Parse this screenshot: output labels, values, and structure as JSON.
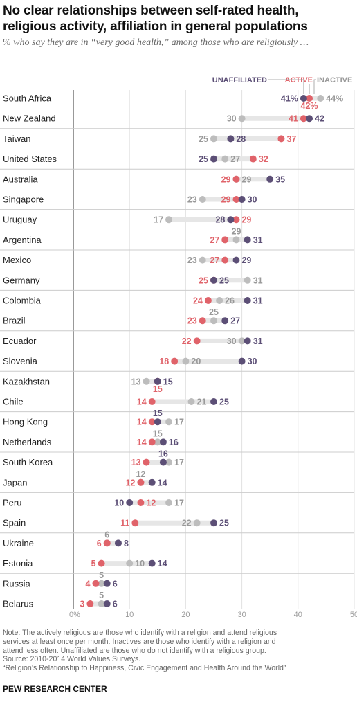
{
  "title": "No clear relationships between self-rated health, religious activity, affiliation in general populations",
  "subtitle": "% who say they are in “very good health,” among those who are religiously …",
  "notes": [
    "Note: The actively religious are those who identify with a religion and attend religious",
    "services at least once per month. Inactives are those who identify with a religion and",
    "attend less often. Unaffiliated are those who do not identify with a religious group.",
    "Source: 2010-2014 World Values Surveys.",
    "“Religion’s Relationship to Happiness, Civic Engagement and Health Around the World”"
  ],
  "brand": "PEW RESEARCH CENTER",
  "colors": {
    "unaffiliated": "#5c4f76",
    "active": "#e0636a",
    "inactive": "#bdbdbd",
    "bar": "#e6e6e6",
    "sep": "#cccccc"
  },
  "chart_data": {
    "type": "dot",
    "series": [
      {
        "key": "unaffiliated",
        "name": "UNAFFILIATED"
      },
      {
        "key": "active",
        "name": "ACTIVE"
      },
      {
        "key": "inactive",
        "name": "INACTIVE"
      }
    ],
    "xlim": [
      0,
      50
    ],
    "xticks": [
      0,
      10,
      20,
      30,
      40,
      50
    ],
    "xtick_labels": [
      "0%",
      "10",
      "20",
      "30",
      "40",
      "50"
    ],
    "rows": [
      {
        "country": "South Africa",
        "unaffiliated": 41,
        "active": 42,
        "inactive": 44,
        "labels": {
          "unaffiliated": "41%",
          "active": "42%",
          "inactive": "44%"
        }
      },
      {
        "country": "New Zealand",
        "unaffiliated": 42,
        "active": 41,
        "inactive": 30
      },
      {
        "country": "Taiwan",
        "unaffiliated": 28,
        "active": 37,
        "inactive": 25
      },
      {
        "country": "United States",
        "unaffiliated": 25,
        "active": 32,
        "inactive": 27
      },
      {
        "country": "Australia",
        "unaffiliated": 35,
        "active": 29,
        "inactive": 29
      },
      {
        "country": "Singapore",
        "unaffiliated": 30,
        "active": 29,
        "inactive": 23
      },
      {
        "country": "Uruguay",
        "unaffiliated": 28,
        "active": 29,
        "inactive": 17
      },
      {
        "country": "Argentina",
        "unaffiliated": 31,
        "active": 27,
        "inactive": 29
      },
      {
        "country": "Mexico",
        "unaffiliated": 29,
        "active": 27,
        "inactive": 23
      },
      {
        "country": "Germany",
        "unaffiliated": 25,
        "active": 25,
        "inactive": 31
      },
      {
        "country": "Colombia",
        "unaffiliated": 31,
        "active": 24,
        "inactive": 26
      },
      {
        "country": "Brazil",
        "unaffiliated": 27,
        "active": 23,
        "inactive": 25
      },
      {
        "country": "Ecuador",
        "unaffiliated": 31,
        "active": 22,
        "inactive": 30
      },
      {
        "country": "Slovenia",
        "unaffiliated": 30,
        "active": 18,
        "inactive": 20
      },
      {
        "country": "Kazakhstan",
        "unaffiliated": 15,
        "active": 15,
        "inactive": 13
      },
      {
        "country": "Chile",
        "unaffiliated": 25,
        "active": 14,
        "inactive": 21
      },
      {
        "country": "Hong Kong",
        "unaffiliated": 15,
        "active": 14,
        "inactive": 17
      },
      {
        "country": "Netherlands",
        "unaffiliated": 16,
        "active": 14,
        "inactive": 15
      },
      {
        "country": "South Korea",
        "unaffiliated": 16,
        "active": 13,
        "inactive": 17
      },
      {
        "country": "Japan",
        "unaffiliated": 14,
        "active": 12,
        "inactive": 12
      },
      {
        "country": "Peru",
        "unaffiliated": 10,
        "active": 12,
        "inactive": 17
      },
      {
        "country": "Spain",
        "unaffiliated": 25,
        "active": 11,
        "inactive": 22
      },
      {
        "country": "Ukraine",
        "unaffiliated": 8,
        "active": 6,
        "inactive": 6
      },
      {
        "country": "Estonia",
        "unaffiliated": 14,
        "active": 5,
        "inactive": 10
      },
      {
        "country": "Russia",
        "unaffiliated": 6,
        "active": 4,
        "inactive": 5
      },
      {
        "country": "Belarus",
        "unaffiliated": 6,
        "active": 3,
        "inactive": 5
      }
    ]
  }
}
